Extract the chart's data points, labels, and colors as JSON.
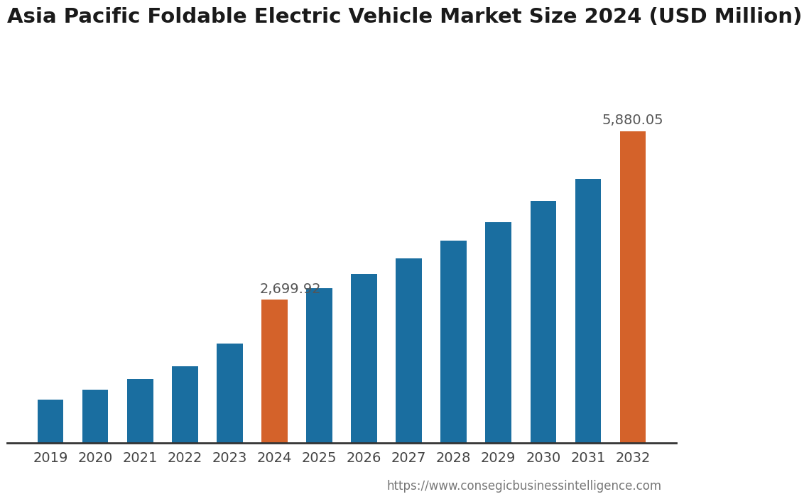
{
  "title": "Asia Pacific Foldable Electric Vehicle Market Size 2024 (USD Million)",
  "years": [
    2019,
    2020,
    2021,
    2022,
    2023,
    2024,
    2025,
    2026,
    2027,
    2028,
    2029,
    2030,
    2031,
    2032
  ],
  "values": [
    820,
    1000,
    1200,
    1450,
    1870,
    2699.92,
    2920,
    3180,
    3480,
    3810,
    4170,
    4560,
    4980,
    5880.05
  ],
  "bar_colors": [
    "#1a6ea0",
    "#1a6ea0",
    "#1a6ea0",
    "#1a6ea0",
    "#1a6ea0",
    "#d4622a",
    "#1a6ea0",
    "#1a6ea0",
    "#1a6ea0",
    "#1a6ea0",
    "#1a6ea0",
    "#1a6ea0",
    "#1a6ea0",
    "#d4622a"
  ],
  "annotated_bars": [
    5,
    13
  ],
  "annotations": [
    "2,699.92",
    "5,880.05"
  ],
  "background_color": "#ffffff",
  "title_fontsize": 21,
  "tick_fontsize": 14,
  "annotation_fontsize": 14,
  "url_text": "https://www.consegicbusinessintelligence.com",
  "url_fontsize": 12,
  "ylim": [
    0,
    7200
  ],
  "bar_width": 0.58
}
